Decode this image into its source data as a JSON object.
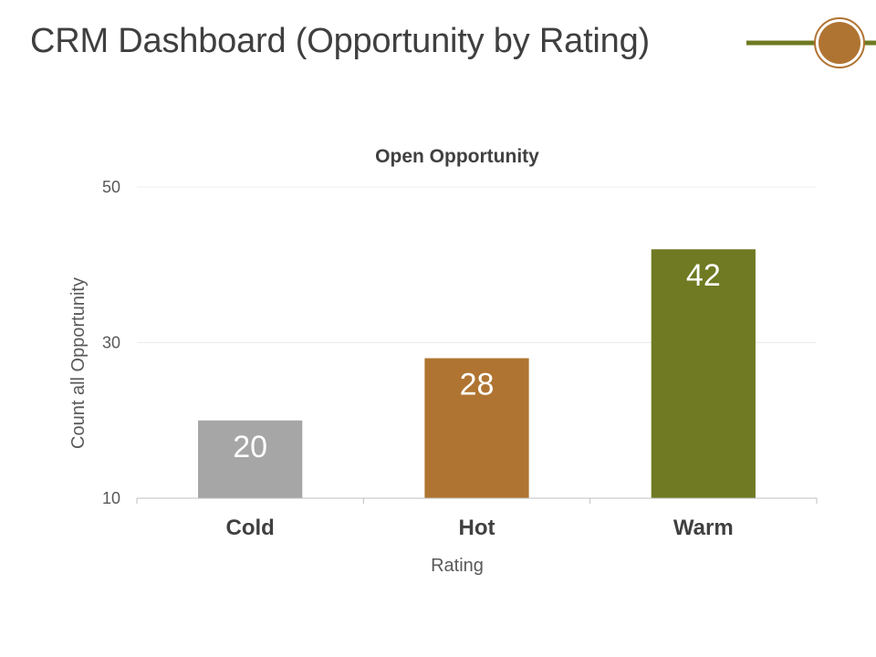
{
  "header": {
    "title": "CRM Dashboard (Opportunity by Rating)"
  },
  "decoration": {
    "line_color": "#6f7a22",
    "circle_color": "#b07432"
  },
  "chart_data": {
    "type": "bar",
    "title": "Open Opportunity",
    "xlabel": "Rating",
    "ylabel": "Count all Opportunity",
    "categories": [
      "Cold",
      "Hot",
      "Warm"
    ],
    "values": [
      20,
      28,
      42
    ],
    "data_labels": [
      "20",
      "28",
      "42"
    ],
    "colors": [
      "#a6a6a6",
      "#b07432",
      "#6f7a22"
    ],
    "ylim": [
      10,
      50
    ],
    "yticks": [
      10,
      30,
      50
    ],
    "ytick_labels": [
      "10",
      "30",
      "50"
    ],
    "grid": true,
    "legend": "none"
  }
}
